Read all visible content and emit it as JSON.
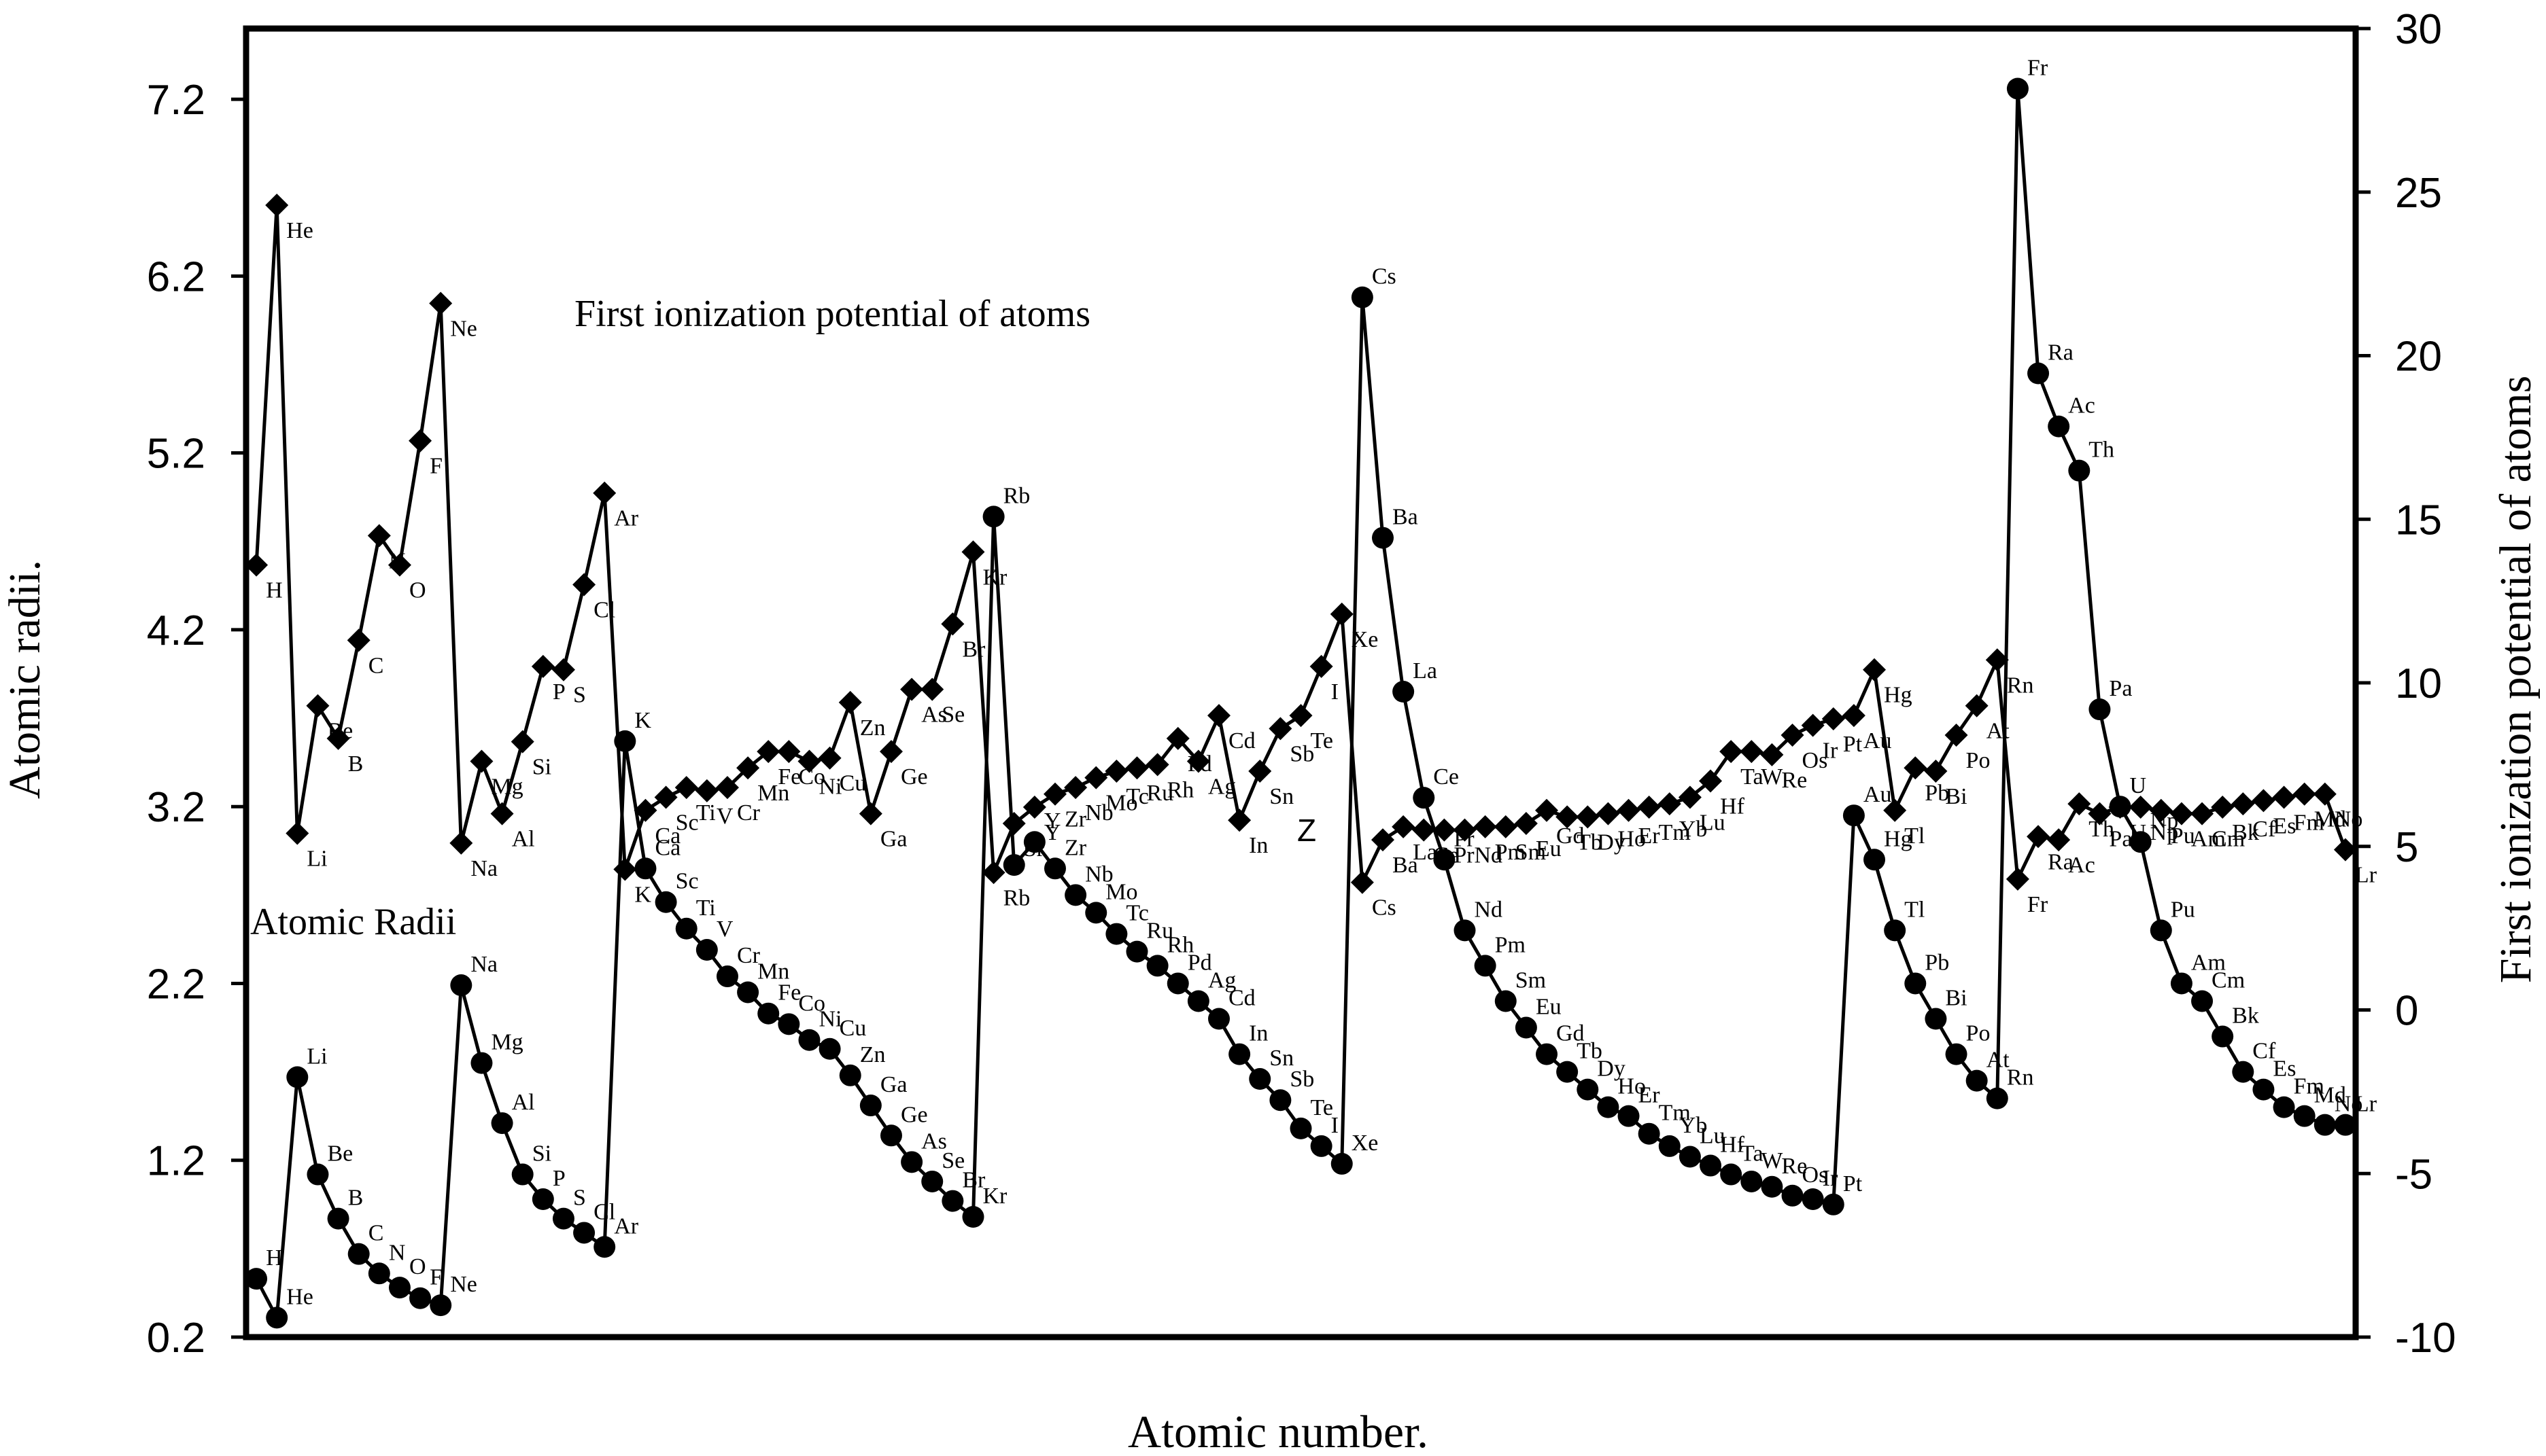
{
  "chart_data": {
    "type": "line",
    "titles": {
      "radii": "Atomic Radii",
      "ionization": "First ionization potential of atoms"
    },
    "xlabel": "Atomic number.",
    "ylabel_left": "Atomic radii.",
    "ylabel_right": "First ionization potential of atoms",
    "center_mark": "Z",
    "left_axis": {
      "range": [
        0.2,
        7.6
      ],
      "ticks": [
        "0.2",
        "1.2",
        "2.2",
        "3.2",
        "4.2",
        "5.2",
        "6.2",
        "7.2"
      ]
    },
    "right_axis": {
      "range": [
        -10,
        30
      ],
      "ticks": [
        "-10",
        "-5",
        "0",
        "5",
        "10",
        "15",
        "20",
        "25",
        "30"
      ]
    },
    "x_range": [
      0.5,
      103.5
    ],
    "elements": [
      "H",
      "He",
      "Li",
      "Be",
      "B",
      "C",
      "N",
      "O",
      "F",
      "Ne",
      "Na",
      "Mg",
      "Al",
      "Si",
      "P",
      "S",
      "Cl",
      "Ar",
      "K",
      "Ca",
      "Sc",
      "Ti",
      "V",
      "Cr",
      "Mn",
      "Fe",
      "Co",
      "Ni",
      "Cu",
      "Zn",
      "Ga",
      "Ge",
      "As",
      "Se",
      "Br",
      "Kr",
      "Rb",
      "Sr",
      "Y",
      "Zr",
      "Nb",
      "Mo",
      "Tc",
      "Ru",
      "Rh",
      "Pd",
      "Ag",
      "Cd",
      "In",
      "Sn",
      "Sb",
      "Te",
      "I",
      "Xe",
      "Cs",
      "Ba",
      "La",
      "Ce",
      "Pr",
      "Nd",
      "Pm",
      "Sm",
      "Eu",
      "Gd",
      "Tb",
      "Dy",
      "Ho",
      "Er",
      "Tm",
      "Yb",
      "Lu",
      "Hf",
      "Ta",
      "W",
      "Re",
      "Os",
      "Ir",
      "Pt",
      "Au",
      "Hg",
      "Tl",
      "Pb",
      "Bi",
      "Po",
      "At",
      "Rn",
      "Fr",
      "Ra",
      "Ac",
      "Th",
      "Pa",
      "U",
      "Np",
      "Pu",
      "Am",
      "Cm",
      "Bk",
      "Cf",
      "Es",
      "Fm",
      "Md",
      "No",
      "Lr"
    ],
    "series": [
      {
        "name": "Atomic Radii",
        "marker": "circle",
        "axis": "left",
        "values": [
          0.53,
          0.31,
          1.67,
          1.12,
          0.87,
          0.67,
          0.56,
          0.48,
          0.42,
          0.38,
          2.19,
          1.75,
          1.41,
          1.12,
          0.98,
          0.87,
          0.79,
          0.71,
          3.57,
          2.85,
          2.66,
          2.51,
          2.39,
          2.24,
          2.15,
          2.03,
          1.97,
          1.88,
          1.83,
          1.68,
          1.51,
          1.34,
          1.19,
          1.08,
          0.97,
          0.88,
          4.84,
          2.87,
          3.0,
          2.85,
          2.7,
          2.6,
          2.48,
          2.38,
          2.3,
          2.2,
          2.1,
          2.0,
          1.8,
          1.66,
          1.54,
          1.38,
          1.28,
          1.18,
          6.08,
          4.72,
          3.85,
          3.25,
          2.9,
          2.5,
          2.3,
          2.1,
          1.95,
          1.8,
          1.7,
          1.6,
          1.5,
          1.45,
          1.35,
          1.28,
          1.22,
          1.17,
          1.12,
          1.08,
          1.05,
          1.0,
          0.98,
          0.95,
          3.15,
          2.9,
          2.5,
          2.2,
          2.0,
          1.8,
          1.65,
          1.55,
          7.26,
          5.65,
          5.35,
          5.1,
          3.75,
          3.2,
          3.0,
          2.5,
          2.2,
          2.1,
          1.9,
          1.7,
          1.6,
          1.5,
          1.45,
          1.4,
          1.4
        ]
      },
      {
        "name": "First ionization potential of atoms",
        "marker": "diamond",
        "axis": "right",
        "values": [
          13.6,
          24.6,
          5.4,
          9.3,
          8.3,
          11.3,
          14.5,
          13.6,
          17.4,
          21.6,
          5.1,
          7.6,
          6.0,
          8.2,
          10.5,
          10.4,
          13.0,
          15.8,
          4.3,
          6.1,
          6.5,
          6.8,
          6.7,
          6.8,
          7.4,
          7.9,
          7.9,
          7.6,
          7.7,
          9.4,
          6.0,
          7.9,
          9.8,
          9.8,
          11.8,
          14.0,
          4.2,
          5.7,
          6.2,
          6.6,
          6.8,
          7.1,
          7.3,
          7.4,
          7.5,
          8.3,
          7.6,
          9.0,
          5.8,
          7.3,
          8.6,
          9.0,
          10.5,
          12.1,
          3.9,
          5.2,
          5.6,
          5.5,
          5.5,
          5.5,
          5.6,
          5.6,
          5.7,
          6.1,
          5.9,
          5.9,
          6.0,
          6.1,
          6.2,
          6.3,
          6.5,
          7.0,
          7.9,
          7.9,
          7.8,
          8.4,
          8.7,
          8.9,
          9.0,
          10.4,
          6.1,
          7.4,
          7.3,
          8.4,
          9.3,
          10.7,
          4.0,
          5.3,
          5.2,
          6.3,
          6.0,
          6.2,
          6.2,
          6.1,
          6.0,
          6.0,
          6.2,
          6.3,
          6.4,
          6.5,
          6.6,
          6.6,
          4.9
        ]
      }
    ]
  }
}
